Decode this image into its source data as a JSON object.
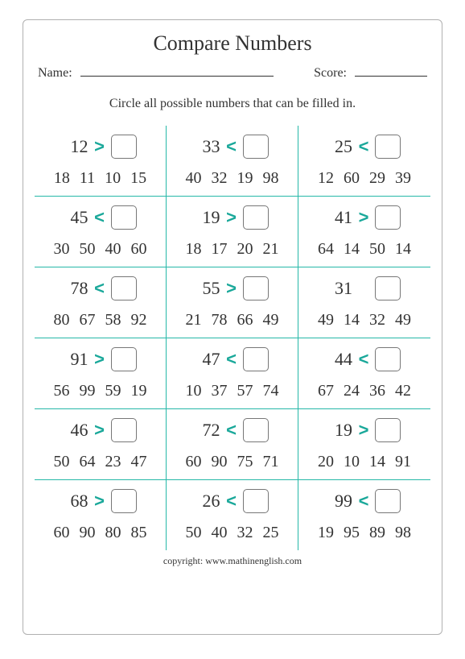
{
  "title": "Compare Numbers",
  "name_label": "Name:",
  "score_label": "Score:",
  "instruction": "Circle all possible numbers that  can be filled in.",
  "copyright": "copyright:   www.mathinenglish.com",
  "colors": {
    "divider": "#26b8a8",
    "operator": "#1aa89a",
    "border": "#b0b0b0",
    "text": "#333333",
    "background": "#ffffff"
  },
  "problems": [
    {
      "n": "12",
      "op": ">",
      "c": [
        "18",
        "11",
        "10",
        "15"
      ]
    },
    {
      "n": "33",
      "op": "<",
      "c": [
        "40",
        "32",
        "19",
        "98"
      ]
    },
    {
      "n": "25",
      "op": "<",
      "c": [
        "12",
        "60",
        "29",
        "39"
      ]
    },
    {
      "n": "45",
      "op": "<",
      "c": [
        "30",
        "50",
        "40",
        "60"
      ]
    },
    {
      "n": "19",
      "op": ">",
      "c": [
        "18",
        "17",
        "20",
        "21"
      ]
    },
    {
      "n": "41",
      "op": ">",
      "c": [
        "64",
        "14",
        "50",
        "14"
      ]
    },
    {
      "n": "78",
      "op": "<",
      "c": [
        "80",
        "67",
        "58",
        "92"
      ]
    },
    {
      "n": "55",
      "op": ">",
      "c": [
        "21",
        "78",
        "66",
        "49"
      ]
    },
    {
      "n": "31",
      "op": "",
      "c": [
        "49",
        "14",
        "32",
        "49"
      ]
    },
    {
      "n": "91",
      "op": ">",
      "c": [
        "56",
        "99",
        "59",
        "19"
      ]
    },
    {
      "n": "47",
      "op": "<",
      "c": [
        "10",
        "37",
        "57",
        "74"
      ]
    },
    {
      "n": "44",
      "op": "<",
      "c": [
        "67",
        "24",
        "36",
        "42"
      ]
    },
    {
      "n": "46",
      "op": ">",
      "c": [
        "50",
        "64",
        "23",
        "47"
      ]
    },
    {
      "n": "72",
      "op": "<",
      "c": [
        "60",
        "90",
        "75",
        "71"
      ]
    },
    {
      "n": "19",
      "op": ">",
      "c": [
        "20",
        "10",
        "14",
        "91"
      ]
    },
    {
      "n": "68",
      "op": ">",
      "c": [
        "60",
        "90",
        "80",
        "85"
      ]
    },
    {
      "n": "26",
      "op": "<",
      "c": [
        "50",
        "40",
        "32",
        "25"
      ]
    },
    {
      "n": "99",
      "op": "<",
      "c": [
        "19",
        "95",
        "89",
        "98"
      ]
    }
  ]
}
